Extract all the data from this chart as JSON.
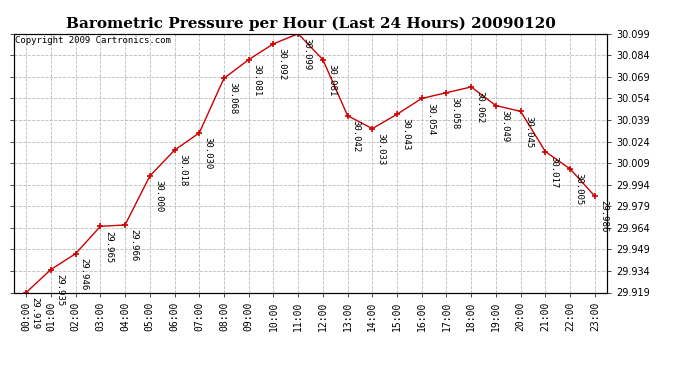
{
  "title": "Barometric Pressure per Hour (Last 24 Hours) 20090120",
  "copyright": "Copyright 2009 Cartronics.com",
  "hours": [
    0,
    1,
    2,
    3,
    4,
    5,
    6,
    7,
    8,
    9,
    10,
    11,
    12,
    13,
    14,
    15,
    16,
    17,
    18,
    19,
    20,
    21,
    22,
    23
  ],
  "hour_labels": [
    "00:00",
    "01:00",
    "02:00",
    "03:00",
    "04:00",
    "05:00",
    "06:00",
    "07:00",
    "08:00",
    "09:00",
    "10:00",
    "11:00",
    "12:00",
    "13:00",
    "14:00",
    "15:00",
    "16:00",
    "17:00",
    "18:00",
    "19:00",
    "20:00",
    "21:00",
    "22:00",
    "23:00"
  ],
  "values": [
    29.919,
    29.935,
    29.946,
    29.965,
    29.966,
    30.0,
    30.018,
    30.03,
    30.068,
    30.081,
    30.092,
    30.099,
    30.081,
    30.042,
    30.033,
    30.043,
    30.054,
    30.058,
    30.062,
    30.049,
    30.045,
    30.017,
    30.005,
    29.986
  ],
  "ylim_min": 29.919,
  "ylim_max": 30.099,
  "ytick_step": 0.015,
  "line_color": "#cc0000",
  "marker_color": "#cc0000",
  "bg_color": "#ffffff",
  "grid_color": "#bbbbbb",
  "title_fontsize": 11,
  "tick_fontsize": 7,
  "annotation_fontsize": 6.5,
  "copyright_fontsize": 6.5
}
